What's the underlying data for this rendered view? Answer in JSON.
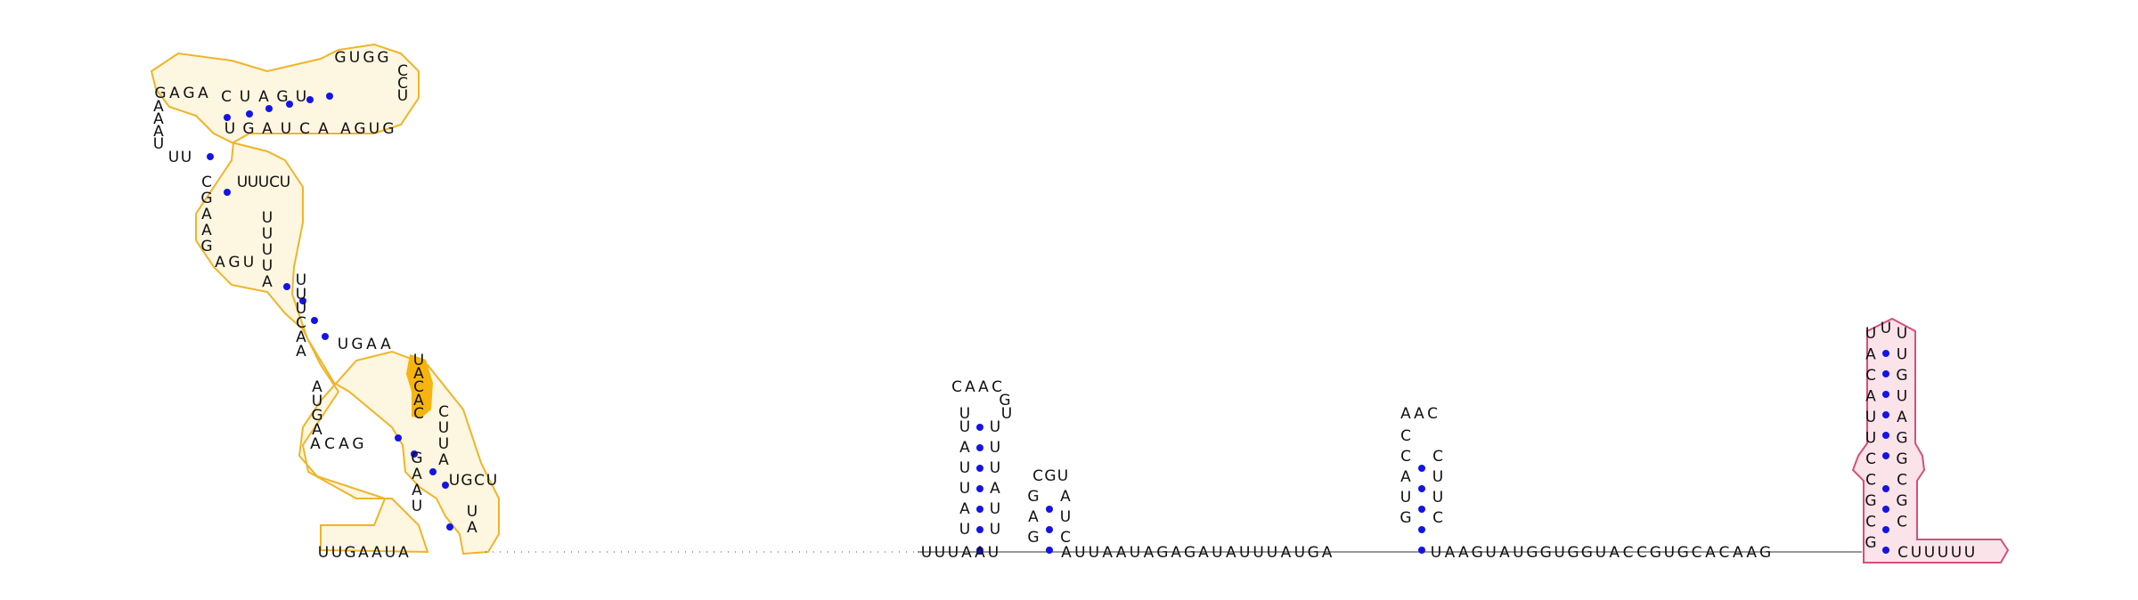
{
  "diagram": {
    "type": "rna-secondary-structure",
    "colors": {
      "base_pair": "#1414e6",
      "outline_yellow": "#f0b429",
      "outline_pink": "#d4507a",
      "highlight": "#f6b40e"
    },
    "regions": [
      {
        "id": "r1",
        "seq": "UUGAAUAAUUAGAGGACUGAUUGAGACAGUCCAUGAGAUGCUAAUACUGAUACUUCUGACUUAAGCUCUUGAACGGCCAGCUCAGAU",
        "note": "placeholder"
      }
    ],
    "lower_line": "UUGAAUAUUUAAUAAUAGAGAUAUUUAUGAUAAGUAUGGUGGUACCGUGCACAAGCUUUUU"
  }
}
